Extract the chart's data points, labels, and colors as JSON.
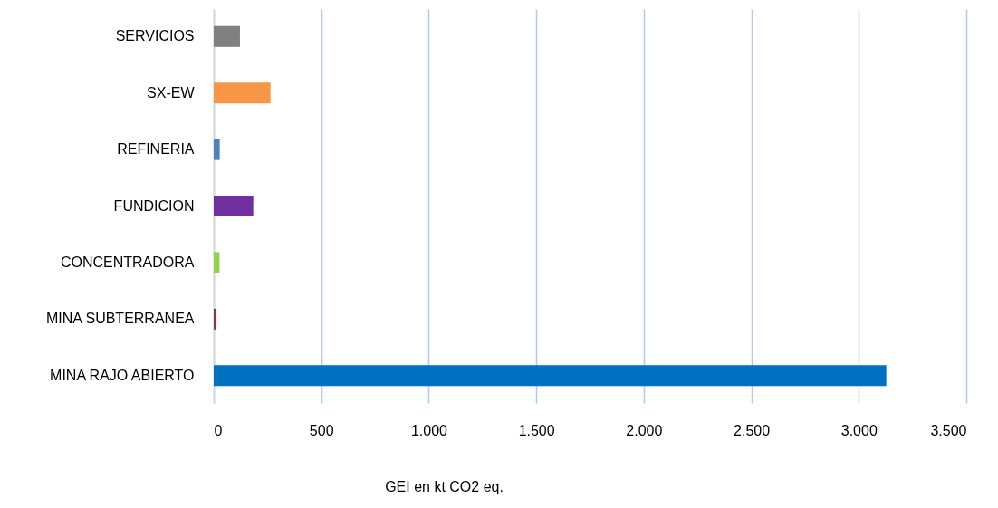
{
  "chart_data": {
    "type": "bar",
    "orientation": "horizontal",
    "xlabel": "GEI en kt CO2 eq.",
    "categories": [
      "SERVICIOS",
      "SX-EW",
      "REFINERIA",
      "FUNDICION",
      "CONCENTRADORA",
      "MINA SUBTERRANEA",
      "MINA RAJO ABIERTO"
    ],
    "values": [
      122,
      264,
      28,
      184,
      27,
      13,
      3128
    ],
    "colors": [
      "#808080",
      "#f79646",
      "#4f81bd",
      "#7030a0",
      "#92d050",
      "#843c3c",
      "#0070c0"
    ],
    "xlim": [
      0,
      3500
    ],
    "xticks": [
      0,
      500,
      {
        "value": 1000,
        "label": "1.000"
      },
      {
        "value": 1500,
        "label": "1.500"
      },
      {
        "value": 2000,
        "label": "2.000"
      },
      {
        "value": 2500,
        "label": "2.500"
      },
      {
        "value": 3000,
        "label": "3.000"
      },
      {
        "value": 3500,
        "label": "3.500"
      }
    ],
    "grid": "x"
  }
}
